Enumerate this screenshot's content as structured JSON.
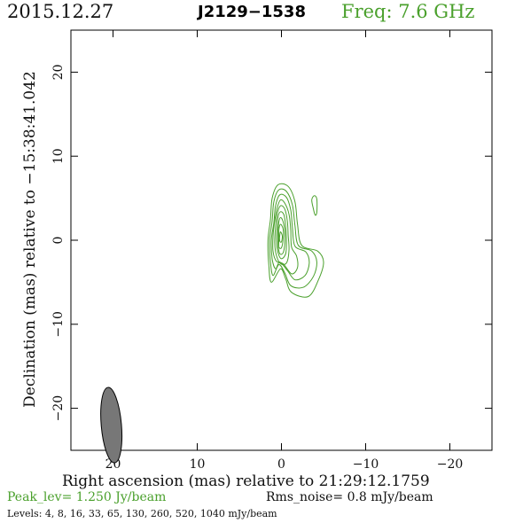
{
  "header": {
    "date": "2015.12.27",
    "source": "J2129−1538",
    "freq": "Freq: 7.6 GHz"
  },
  "footer": {
    "peak": "Peak_lev=  1.250 Jy/beam",
    "rms": "Rms_noise=  0.8 mJy/beam",
    "levels": "Levels:   4,   8,  16,  33,  65, 130, 260, 520, 1040 mJy/beam"
  },
  "colors": {
    "contour": "#4aa02c",
    "beam": "#777777",
    "axis": "#000000"
  },
  "chart_data": {
    "type": "contour",
    "title": "J2129−1538",
    "xlabel": "Right ascension (mas) relative to 21:29:12.1759",
    "ylabel": "Declination (mas) relative to −15:38:41.042",
    "xlim": [
      25,
      -25
    ],
    "ylim": [
      -25,
      25
    ],
    "xticks": [
      20,
      10,
      0,
      -10,
      -20
    ],
    "yticks": [
      20,
      10,
      0,
      -10,
      -20
    ],
    "xtick_labels": [
      "20",
      "10",
      "0",
      "−10",
      "−20"
    ],
    "ytick_labels": [
      "20",
      "10",
      "0",
      "−10",
      "−20"
    ],
    "levels_mJy": [
      4,
      8,
      16,
      33,
      65,
      130,
      260,
      520,
      1040
    ],
    "peak_Jy_per_beam": 1.25,
    "rms_mJy_per_beam": 0.8,
    "beam": {
      "ra": 20.2,
      "dec": -22.0,
      "major_mas": 4.5,
      "minor_mas": 1.2,
      "pa_deg": -5
    },
    "contours": [
      {
        "name": "c1",
        "points": [
          [
            0.4,
            6.6
          ],
          [
            -0.8,
            6.4
          ],
          [
            -1.6,
            4.6
          ],
          [
            -1.9,
            2.0
          ],
          [
            -2.4,
            -0.6
          ],
          [
            -4.3,
            -1.3
          ],
          [
            -5.0,
            -2.6
          ],
          [
            -4.4,
            -4.7
          ],
          [
            -3.2,
            -6.7
          ],
          [
            -1.2,
            -6.2
          ],
          [
            -0.5,
            -4.6
          ],
          [
            0.1,
            -3.4
          ],
          [
            1.2,
            -5.0
          ],
          [
            1.5,
            -3.0
          ],
          [
            1.6,
            0.0
          ],
          [
            1.3,
            2.5
          ],
          [
            1.1,
            5.0
          ]
        ]
      },
      {
        "name": "c2",
        "points": [
          [
            0.3,
            6.0
          ],
          [
            -0.6,
            5.8
          ],
          [
            -1.3,
            4.2
          ],
          [
            -1.6,
            1.8
          ],
          [
            -2.0,
            -0.6
          ],
          [
            -3.6,
            -1.3
          ],
          [
            -4.2,
            -2.6
          ],
          [
            -3.8,
            -4.3
          ],
          [
            -2.6,
            -5.6
          ],
          [
            -1.1,
            -5.4
          ],
          [
            -0.4,
            -3.9
          ],
          [
            0.3,
            -2.9
          ],
          [
            1.0,
            -4.2
          ],
          [
            1.3,
            -2.6
          ],
          [
            1.4,
            0.0
          ],
          [
            1.1,
            2.3
          ],
          [
            0.9,
            4.6
          ]
        ]
      },
      {
        "name": "c3",
        "points": [
          [
            0.2,
            5.4
          ],
          [
            -0.6,
            5.1
          ],
          [
            -1.1,
            3.6
          ],
          [
            -1.3,
            1.5
          ],
          [
            -1.6,
            -0.7
          ],
          [
            -2.9,
            -1.4
          ],
          [
            -3.3,
            -2.7
          ],
          [
            -2.8,
            -4.2
          ],
          [
            -1.6,
            -4.7
          ],
          [
            -0.7,
            -3.6
          ],
          [
            0.2,
            -2.6
          ],
          [
            0.7,
            -3.4
          ],
          [
            1.1,
            -2.2
          ],
          [
            1.2,
            0.0
          ],
          [
            0.9,
            2.1
          ],
          [
            0.7,
            4.1
          ]
        ]
      },
      {
        "name": "c4",
        "points": [
          [
            0.1,
            4.8
          ],
          [
            -0.4,
            4.4
          ],
          [
            -0.9,
            3.1
          ],
          [
            -1.1,
            1.2
          ],
          [
            -1.2,
            -0.8
          ],
          [
            -1.8,
            -1.9
          ],
          [
            -1.9,
            -3.3
          ],
          [
            -1.2,
            -4.0
          ],
          [
            -0.2,
            -2.8
          ],
          [
            0.6,
            -2.5
          ],
          [
            1.0,
            -1.3
          ],
          [
            1.0,
            0.5
          ],
          [
            0.8,
            2.3
          ],
          [
            0.5,
            3.9
          ]
        ]
      },
      {
        "name": "c5",
        "points": [
          [
            0.1,
            4.1
          ],
          [
            -0.4,
            3.7
          ],
          [
            -0.7,
            2.3
          ],
          [
            -0.8,
            0.6
          ],
          [
            -0.9,
            -1.2
          ],
          [
            -0.6,
            -2.7
          ],
          [
            0.1,
            -2.8
          ],
          [
            0.6,
            -1.8
          ],
          [
            0.8,
            -0.3
          ],
          [
            0.7,
            1.6
          ],
          [
            0.5,
            3.2
          ]
        ]
      },
      {
        "name": "c6",
        "points": [
          [
            0.1,
            3.4
          ],
          [
            -0.3,
            3.0
          ],
          [
            -0.5,
            1.6
          ],
          [
            -0.6,
            0.0
          ],
          [
            -0.5,
            -1.6
          ],
          [
            0.0,
            -2.2
          ],
          [
            0.4,
            -1.5
          ],
          [
            0.6,
            0.0
          ],
          [
            0.5,
            1.6
          ],
          [
            0.4,
            2.8
          ]
        ]
      },
      {
        "name": "c7",
        "points": [
          [
            0.1,
            2.7
          ],
          [
            -0.2,
            2.2
          ],
          [
            -0.4,
            1.0
          ],
          [
            -0.4,
            -0.4
          ],
          [
            -0.2,
            -1.5
          ],
          [
            0.2,
            -1.6
          ],
          [
            0.4,
            -0.5
          ],
          [
            0.4,
            1.0
          ],
          [
            0.3,
            2.2
          ]
        ]
      },
      {
        "name": "c8",
        "points": [
          [
            0.1,
            1.9
          ],
          [
            -0.2,
            1.3
          ],
          [
            -0.2,
            0.1
          ],
          [
            0.0,
            -0.9
          ],
          [
            0.3,
            -0.8
          ],
          [
            0.3,
            0.3
          ],
          [
            0.3,
            1.3
          ]
        ]
      },
      {
        "name": "c9",
        "points": [
          [
            0.1,
            1.0
          ],
          [
            -0.1,
            0.5
          ],
          [
            0.0,
            -0.2
          ],
          [
            0.2,
            -0.1
          ],
          [
            0.2,
            0.6
          ]
        ]
      },
      {
        "name": "c10",
        "points": [
          [
            -3.6,
            4.8
          ],
          [
            -3.9,
            5.3
          ],
          [
            -4.2,
            4.9
          ],
          [
            -4.2,
            3.3
          ],
          [
            -4.0,
            3.0
          ],
          [
            -3.8,
            3.7
          ]
        ]
      }
    ]
  }
}
